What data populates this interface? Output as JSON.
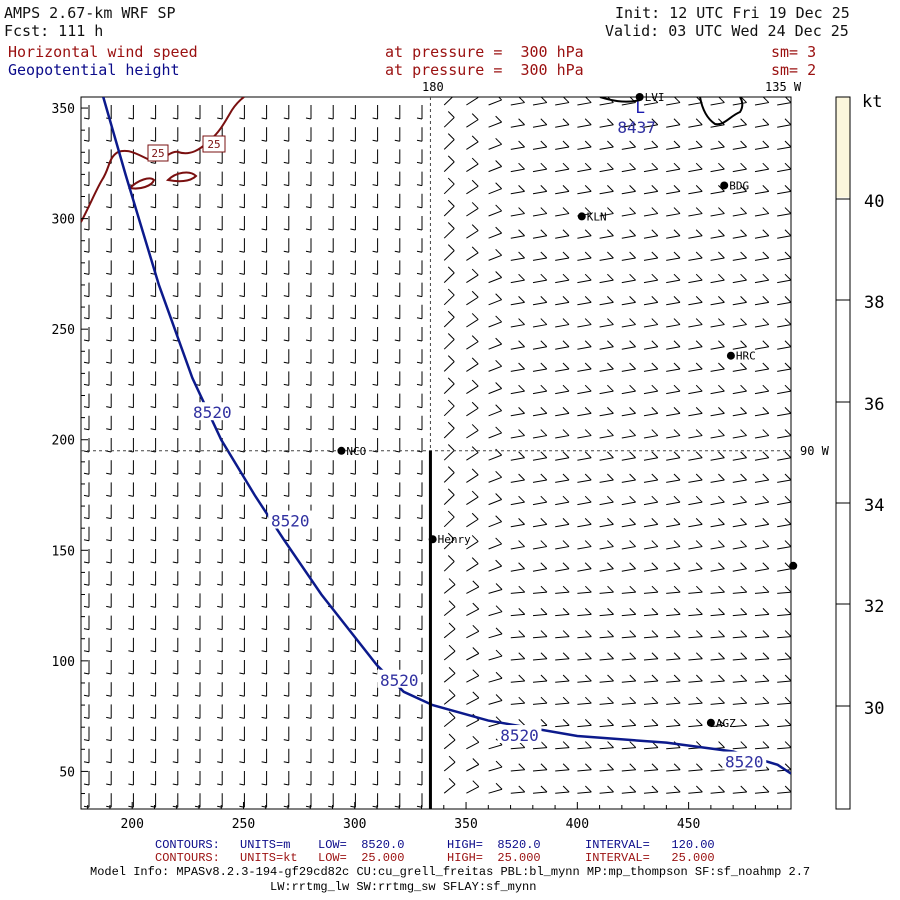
{
  "header": {
    "model": "AMPS 2.67-km WRF SP",
    "init": "Init: 12 UTC Fri 19 Dec 25",
    "forecast": "Fcst: 111 h",
    "valid": "Valid: 03 UTC Wed 24 Dec 25",
    "field1": "Horizontal wind speed",
    "field1_level": "at pressure =  300 hPa",
    "field1_sm": "sm= 3",
    "field2": "Geopotential height",
    "field2_level": "at pressure =  300 hPa",
    "field2_sm": "sm= 2"
  },
  "meridian_labels": {
    "top_180": "180",
    "top_135w": "135 W",
    "right_90w": "90 W"
  },
  "colorbar": {
    "unit": "kt",
    "ticks": [
      "40",
      "38",
      "36",
      "34",
      "32",
      "30"
    ]
  },
  "stations": [
    {
      "name": "LVI",
      "x": 428,
      "y": 355
    },
    {
      "name": "BDG",
      "x": 466,
      "y": 315
    },
    {
      "name": "KLN",
      "x": 402,
      "y": 301
    },
    {
      "name": "HRC",
      "x": 469,
      "y": 238
    },
    {
      "name": "NCO",
      "x": 294,
      "y": 195
    },
    {
      "name": "Henry",
      "x": 335,
      "y": 155
    },
    {
      "name": "AGZ",
      "x": 460,
      "y": 72
    },
    {
      "name": "",
      "x": 497,
      "y": 143
    }
  ],
  "low_marker": {
    "letter": "L",
    "value": "8437",
    "x": 418,
    "y": 340
  },
  "wind_contour_labels": [
    "25",
    "25"
  ],
  "footer": {
    "c1_label": "CONTOURS:",
    "c1_units": "UNITS=m",
    "c1_low": "LOW=  8520.0",
    "c1_high": "HIGH=  8520.0",
    "c1_interval": "INTERVAL=   120.00",
    "c2_label": "CONTOURS:",
    "c2_units": "UNITS=kt",
    "c2_low": "LOW=  25.000",
    "c2_high": "HIGH=  25.000",
    "c2_interval": "INTERVAL=   25.000",
    "model_info": "Model Info: MPASv8.2.3-194-gf29cd82c CU:cu_grell_freitas PBL:bl_mynn MP:mp_thompson SF:sf_noahmp 2.7",
    "model_info2": "LW:rrtmg_lw SW:rrtmg_sw SFLAY:sf_mynn"
  },
  "chart_data": {
    "type": "map",
    "title": "Horizontal wind speed / Geopotential height at 300 hPa",
    "xlim": [
      177,
      496
    ],
    "ylim": [
      33,
      355
    ],
    "x_ticks": [
      200,
      250,
      300,
      350,
      400,
      450
    ],
    "y_ticks": [
      50,
      100,
      150,
      200,
      250,
      300,
      350
    ],
    "height_contour": {
      "value": "8520",
      "units": "m",
      "points": [
        [
          187,
          355
        ],
        [
          197,
          320
        ],
        [
          212,
          270
        ],
        [
          227,
          228
        ],
        [
          240,
          200
        ],
        [
          255,
          175
        ],
        [
          268,
          155
        ],
        [
          285,
          130
        ],
        [
          310,
          98
        ],
        [
          322,
          86
        ],
        [
          335,
          80
        ],
        [
          360,
          73
        ],
        [
          400,
          66
        ],
        [
          440,
          63
        ],
        [
          470,
          59
        ],
        [
          490,
          53
        ],
        [
          496,
          49
        ]
      ],
      "labels": [
        {
          "text": "8520",
          "x": 236,
          "y": 212
        },
        {
          "text": "8520",
          "x": 271,
          "y": 163
        },
        {
          "text": "8520",
          "x": 320,
          "y": 91
        },
        {
          "text": "8520",
          "x": 374,
          "y": 66
        },
        {
          "text": "8520",
          "x": 475,
          "y": 54
        }
      ]
    },
    "guide_lines": {
      "vertical_x": 334,
      "horizontal_y": 195
    },
    "cross_section": {
      "x": 334,
      "y_from": 33,
      "y_to": 195
    }
  }
}
